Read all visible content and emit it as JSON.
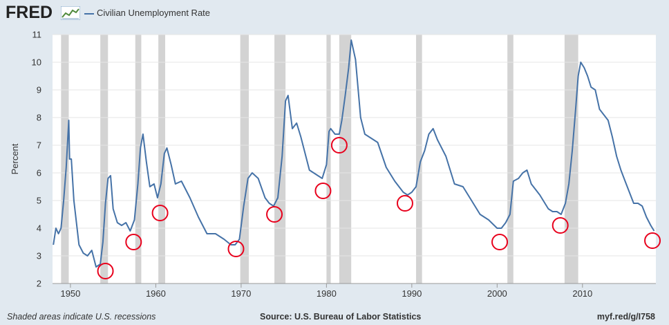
{
  "header": {
    "logo_text": "FRED",
    "legend_label": "Civilian Unemployment Rate"
  },
  "footer": {
    "note": "Shaded areas indicate U.S. recessions",
    "source": "Source: U.S. Bureau of Labor Statistics",
    "link": "myf.red/g/I758"
  },
  "colors": {
    "series": "#4572a7",
    "recession": "#d3d3d3",
    "plot_bg": "#ffffff",
    "page_bg": "#e1e9f0",
    "marker": "#e8001c"
  },
  "chart_data": {
    "type": "line",
    "ylabel": "Percent",
    "xlabel": "",
    "ylim": [
      2,
      11
    ],
    "xlim": [
      1947.9,
      2018.6
    ],
    "yticks": [
      2,
      3,
      4,
      5,
      6,
      7,
      8,
      9,
      10,
      11
    ],
    "xticks": [
      1950,
      1960,
      1970,
      1980,
      1990,
      2000,
      2010
    ],
    "grid": "horizontal",
    "recessions": [
      [
        1948.9,
        1949.8
      ],
      [
        1953.5,
        1954.4
      ],
      [
        1957.6,
        1958.3
      ],
      [
        1960.3,
        1961.1
      ],
      [
        1969.9,
        1970.9
      ],
      [
        1973.9,
        1975.2
      ],
      [
        1980.0,
        1980.5
      ],
      [
        1981.5,
        1982.9
      ],
      [
        1990.5,
        1991.2
      ],
      [
        2001.2,
        2001.9
      ],
      [
        2007.9,
        2009.5
      ]
    ],
    "series": [
      {
        "name": "Civilian Unemployment Rate",
        "x": [
          1948.0,
          1948.3,
          1948.6,
          1948.9,
          1949.2,
          1949.5,
          1949.8,
          1949.9,
          1950.1,
          1950.4,
          1950.7,
          1951.0,
          1951.5,
          1952.0,
          1952.5,
          1953.0,
          1953.5,
          1953.8,
          1954.1,
          1954.4,
          1954.7,
          1955.0,
          1955.5,
          1956.0,
          1956.5,
          1957.0,
          1957.5,
          1957.9,
          1958.2,
          1958.5,
          1958.9,
          1959.3,
          1959.8,
          1960.2,
          1960.6,
          1961.0,
          1961.3,
          1961.8,
          1962.3,
          1963.0,
          1964.0,
          1965.0,
          1966.0,
          1967.0,
          1968.0,
          1968.8,
          1969.3,
          1969.8,
          1970.3,
          1970.8,
          1971.3,
          1972.0,
          1972.8,
          1973.3,
          1973.8,
          1974.3,
          1974.8,
          1975.2,
          1975.5,
          1976.0,
          1976.5,
          1977.0,
          1978.0,
          1979.0,
          1979.5,
          1980.0,
          1980.3,
          1980.5,
          1981.0,
          1981.5,
          1981.8,
          1982.2,
          1982.6,
          1982.9,
          1983.4,
          1984.0,
          1984.5,
          1985.0,
          1986.0,
          1987.0,
          1988.0,
          1989.0,
          1989.5,
          1990.0,
          1990.5,
          1991.0,
          1991.5,
          1992.0,
          1992.5,
          1993.0,
          1994.0,
          1995.0,
          1996.0,
          1997.0,
          1998.0,
          1999.0,
          2000.0,
          2000.5,
          2001.0,
          2001.5,
          2001.9,
          2002.5,
          2003.0,
          2003.5,
          2004.0,
          2005.0,
          2006.0,
          2006.5,
          2007.0,
          2007.5,
          2008.0,
          2008.4,
          2008.8,
          2009.2,
          2009.5,
          2009.8,
          2010.2,
          2010.6,
          2011.0,
          2011.5,
          2012.0,
          2012.5,
          2013.0,
          2013.5,
          2014.0,
          2014.5,
          2015.0,
          2015.5,
          2016.0,
          2016.5,
          2017.0,
          2017.5,
          2018.0,
          2018.4
        ],
        "values": [
          3.4,
          4.0,
          3.8,
          4.0,
          5.0,
          6.2,
          7.9,
          6.5,
          6.5,
          5.0,
          4.2,
          3.4,
          3.1,
          3.0,
          3.2,
          2.6,
          2.7,
          3.5,
          4.9,
          5.8,
          5.9,
          4.7,
          4.2,
          4.1,
          4.2,
          3.9,
          4.3,
          5.6,
          6.9,
          7.4,
          6.4,
          5.5,
          5.6,
          5.1,
          5.6,
          6.7,
          6.9,
          6.3,
          5.6,
          5.7,
          5.1,
          4.4,
          3.8,
          3.8,
          3.6,
          3.4,
          3.4,
          3.6,
          4.8,
          5.8,
          6.0,
          5.8,
          5.1,
          4.9,
          4.8,
          5.1,
          6.6,
          8.6,
          8.8,
          7.6,
          7.8,
          7.3,
          6.1,
          5.9,
          5.8,
          6.3,
          7.5,
          7.6,
          7.4,
          7.4,
          7.9,
          8.8,
          9.8,
          10.8,
          10.1,
          8.0,
          7.4,
          7.3,
          7.1,
          6.2,
          5.7,
          5.3,
          5.2,
          5.3,
          5.5,
          6.4,
          6.8,
          7.4,
          7.6,
          7.2,
          6.6,
          5.6,
          5.5,
          5.0,
          4.5,
          4.3,
          4.0,
          4.0,
          4.2,
          4.5,
          5.7,
          5.8,
          6.0,
          6.1,
          5.6,
          5.2,
          4.7,
          4.6,
          4.6,
          4.5,
          4.9,
          5.6,
          6.8,
          8.3,
          9.5,
          10.0,
          9.8,
          9.5,
          9.1,
          9.0,
          8.3,
          8.1,
          7.9,
          7.3,
          6.6,
          6.1,
          5.7,
          5.3,
          4.9,
          4.9,
          4.8,
          4.4,
          4.1,
          3.9
        ]
      }
    ],
    "annotations": [
      {
        "type": "circle",
        "x": 1954.1,
        "y": 2.45
      },
      {
        "type": "circle",
        "x": 1957.4,
        "y": 3.5
      },
      {
        "type": "circle",
        "x": 1960.5,
        "y": 4.55
      },
      {
        "type": "circle",
        "x": 1969.4,
        "y": 3.25
      },
      {
        "type": "circle",
        "x": 1973.9,
        "y": 4.5
      },
      {
        "type": "circle",
        "x": 1979.6,
        "y": 5.35
      },
      {
        "type": "circle",
        "x": 1981.5,
        "y": 7.0
      },
      {
        "type": "circle",
        "x": 1989.2,
        "y": 4.9
      },
      {
        "type": "circle",
        "x": 2000.3,
        "y": 3.5
      },
      {
        "type": "circle",
        "x": 2007.4,
        "y": 4.1
      },
      {
        "type": "circle",
        "x": 2018.2,
        "y": 3.55
      }
    ]
  }
}
